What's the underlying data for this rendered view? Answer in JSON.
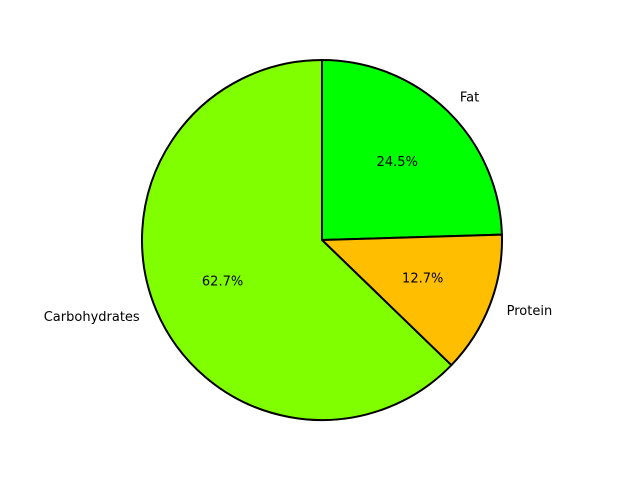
{
  "chart_data": {
    "type": "pie",
    "title": "",
    "categories": [
      "Fat",
      "Protein",
      "Carbohydrates"
    ],
    "values": [
      24.5,
      12.7,
      62.7
    ],
    "value_labels": [
      "24.5%",
      "12.7%",
      "62.7%"
    ],
    "colors": [
      "#00ff00",
      "#ffbf00",
      "#80ff00"
    ],
    "start_angle_deg": 90,
    "direction": "clockwise",
    "edge_color": "#000000",
    "legend": "none"
  }
}
